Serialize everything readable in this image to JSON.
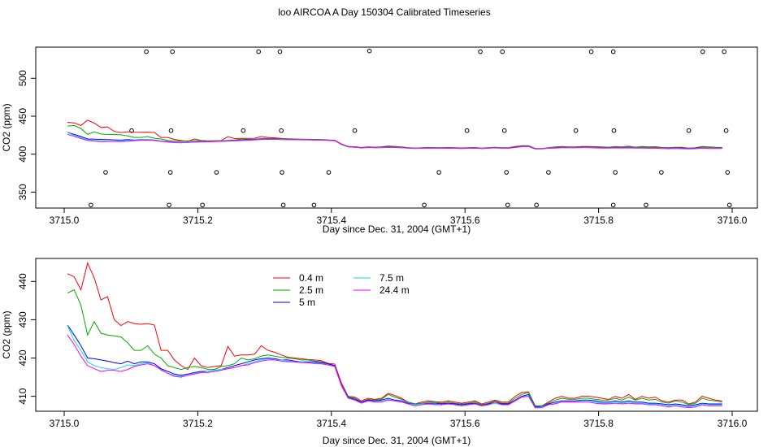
{
  "main_title": "loo AIRCOA A  Day 150304  Calibrated Timeseries",
  "chart_data": [
    {
      "type": "line",
      "xlabel": "Day since Dec. 31, 2004 (GMT+1)",
      "ylabel": "CO2 (ppm)",
      "xlim": [
        3715.0,
        3716.0
      ],
      "ylim": [
        329,
        541
      ],
      "x_ticks": [
        "3715.0",
        "3715.2",
        "3715.4",
        "3715.6",
        "3715.8",
        "3716.0"
      ],
      "y_ticks": [
        "350",
        "400",
        "450",
        "500"
      ],
      "grid": false,
      "legend": "none",
      "colors": [
        "#ff0000",
        "#00aa00",
        "#0000ff",
        "#00e5ee",
        "#ff00ff"
      ],
      "x": [
        3715.005,
        3715.015,
        3715.025,
        3715.035,
        3715.045,
        3715.055,
        3715.065,
        3715.075,
        3715.085,
        3715.095,
        3715.105,
        3715.115,
        3715.125,
        3715.135,
        3715.145,
        3715.155,
        3715.165,
        3715.175,
        3715.185,
        3715.195,
        3715.205,
        3715.215,
        3715.225,
        3715.235,
        3715.245,
        3715.255,
        3715.265,
        3715.275,
        3715.285,
        3715.295,
        3715.305,
        3715.315,
        3715.325,
        3715.335,
        3715.345,
        3715.355,
        3715.365,
        3715.375,
        3715.385,
        3715.395,
        3715.405,
        3715.415,
        3715.425,
        3715.435,
        3715.445,
        3715.455,
        3715.465,
        3715.475,
        3715.485,
        3715.495,
        3715.505,
        3715.515,
        3715.525,
        3715.535,
        3715.545,
        3715.555,
        3715.565,
        3715.575,
        3715.585,
        3715.595,
        3715.605,
        3715.615,
        3715.625,
        3715.635,
        3715.645,
        3715.655,
        3715.665,
        3715.675,
        3715.685,
        3715.695,
        3715.705,
        3715.715,
        3715.725,
        3715.735,
        3715.745,
        3715.755,
        3715.765,
        3715.775,
        3715.785,
        3715.795,
        3715.805,
        3715.815,
        3715.825,
        3715.835,
        3715.845,
        3715.855,
        3715.865,
        3715.875,
        3715.885,
        3715.895,
        3715.905,
        3715.915,
        3715.925,
        3715.935,
        3715.945,
        3715.955,
        3715.965,
        3715.975,
        3715.985
      ],
      "series": [
        {
          "name": "0.4 m",
          "values": [
            442.0,
            441.2,
            437.8,
            444.8,
            440.9,
            435.2,
            436.0,
            430.0,
            428.5,
            429.5,
            429.0,
            428.8,
            429.0,
            428.6,
            422.0,
            422.0,
            419.5,
            418.0,
            417.0,
            420.0,
            418.0,
            417.5,
            417.8,
            418.0,
            423.0,
            420.5,
            420.8,
            420.8,
            421.0,
            423.2,
            422.0,
            421.5,
            420.8,
            420.2,
            420.0,
            419.8,
            419.6,
            419.5,
            419.3,
            418.6,
            418.4,
            413.5,
            410.0,
            409.8,
            408.8,
            409.5,
            409.2,
            409.5,
            410.8,
            410.2,
            409.5,
            408.5,
            408.0,
            408.5,
            408.8,
            408.6,
            408.5,
            408.8,
            408.5,
            408.2,
            408.5,
            408.8,
            408.0,
            408.5,
            409.0,
            408.5,
            408.5,
            410.0,
            411.0,
            411.2,
            407.5,
            407.5,
            408.5,
            409.5,
            410.0,
            409.5,
            409.5,
            410.0,
            410.0,
            409.8,
            409.5,
            409.2,
            410.0,
            409.5,
            410.5,
            409.2,
            410.0,
            409.5,
            409.8,
            408.8,
            408.5,
            409.0,
            409.0,
            408.0,
            408.5,
            410.0,
            409.5,
            409.0,
            408.8
          ]
        },
        {
          "name": "2.5 m",
          "values": [
            437.0,
            437.8,
            433.8,
            426.0,
            429.5,
            426.5,
            426.0,
            425.8,
            425.5,
            424.0,
            422.0,
            422.0,
            423.2,
            421.0,
            420.0,
            418.0,
            417.5,
            417.0,
            417.5,
            417.8,
            417.5,
            417.0,
            417.0,
            417.8,
            418.0,
            418.5,
            420.0,
            419.5,
            419.8,
            420.5,
            420.8,
            420.5,
            420.2,
            420.0,
            419.8,
            419.5,
            419.5,
            419.2,
            419.0,
            418.5,
            418.0,
            413.0,
            410.0,
            409.5,
            408.5,
            409.2,
            409.0,
            409.2,
            410.5,
            409.8,
            409.2,
            408.5,
            408.0,
            408.2,
            408.5,
            408.5,
            408.2,
            408.5,
            408.2,
            408.0,
            408.2,
            408.5,
            407.8,
            408.2,
            408.8,
            408.2,
            408.2,
            409.5,
            410.5,
            411.0,
            407.5,
            407.5,
            408.2,
            409.0,
            409.5,
            409.2,
            409.2,
            409.5,
            409.5,
            409.2,
            409.0,
            409.0,
            409.5,
            409.0,
            409.8,
            409.0,
            409.5,
            409.0,
            409.2,
            408.5,
            408.2,
            408.8,
            408.5,
            407.8,
            408.2,
            409.5,
            409.0,
            408.8,
            408.5
          ]
        },
        {
          "name": "5 m",
          "values": [
            428.6,
            426.0,
            423.2,
            420.0,
            419.8,
            419.5,
            419.2,
            418.8,
            418.5,
            419.2,
            418.5,
            419.0,
            419.0,
            418.5,
            417.2,
            416.5,
            415.8,
            415.5,
            415.8,
            416.2,
            416.5,
            416.5,
            416.8,
            417.0,
            417.5,
            418.0,
            418.5,
            419.0,
            419.5,
            419.8,
            420.0,
            419.8,
            419.5,
            419.5,
            419.2,
            419.0,
            419.0,
            419.0,
            418.8,
            418.5,
            418.0,
            413.0,
            409.8,
            409.2,
            408.5,
            409.0,
            408.8,
            409.0,
            409.5,
            409.0,
            408.8,
            408.2,
            407.8,
            408.0,
            408.2,
            408.2,
            408.0,
            408.2,
            408.0,
            407.8,
            408.0,
            408.2,
            407.6,
            408.0,
            408.5,
            408.0,
            408.0,
            409.0,
            410.0,
            410.5,
            407.2,
            407.3,
            408.0,
            408.5,
            408.8,
            408.8,
            408.8,
            409.0,
            409.0,
            408.8,
            408.5,
            408.5,
            408.8,
            408.5,
            408.8,
            408.5,
            408.5,
            408.2,
            408.2,
            408.0,
            407.8,
            408.0,
            407.8,
            407.5,
            407.8,
            408.2,
            408.0,
            408.0,
            408.0
          ]
        },
        {
          "name": "7.5 m",
          "values": [
            428.5,
            424.5,
            422.0,
            419.0,
            418.0,
            417.5,
            417.2,
            417.0,
            417.5,
            418.2,
            418.0,
            418.5,
            418.8,
            418.0,
            416.8,
            416.0,
            415.5,
            415.2,
            415.5,
            416.0,
            416.2,
            416.5,
            416.8,
            417.0,
            417.2,
            417.5,
            418.0,
            418.5,
            419.0,
            419.5,
            419.8,
            419.5,
            419.5,
            419.2,
            419.0,
            419.0,
            418.8,
            418.8,
            418.5,
            418.2,
            417.8,
            412.8,
            409.5,
            409.0,
            408.2,
            408.8,
            408.5,
            408.8,
            409.2,
            408.8,
            408.5,
            408.0,
            407.8,
            408.0,
            408.0,
            408.0,
            407.8,
            408.0,
            407.8,
            407.5,
            407.8,
            408.0,
            407.5,
            407.8,
            408.2,
            407.8,
            407.8,
            408.8,
            409.8,
            410.2,
            407.0,
            407.2,
            407.8,
            408.2,
            408.5,
            408.5,
            408.5,
            408.8,
            408.8,
            408.5,
            408.2,
            408.2,
            408.5,
            408.2,
            408.5,
            408.2,
            408.2,
            408.0,
            408.0,
            407.8,
            407.5,
            407.8,
            407.5,
            407.2,
            407.5,
            408.0,
            407.8,
            407.8,
            407.8
          ]
        },
        {
          "name": "24.4 m",
          "values": [
            426.0,
            423.5,
            420.5,
            418.0,
            417.2,
            416.5,
            416.8,
            416.8,
            416.5,
            417.0,
            417.8,
            418.2,
            418.5,
            418.0,
            417.0,
            416.0,
            415.2,
            415.0,
            415.5,
            415.8,
            416.2,
            416.2,
            416.5,
            416.8,
            417.2,
            417.5,
            418.0,
            418.2,
            418.8,
            419.2,
            419.5,
            419.5,
            419.2,
            419.0,
            419.0,
            418.8,
            418.8,
            418.5,
            418.5,
            418.2,
            417.8,
            412.8,
            409.5,
            409.0,
            408.2,
            408.8,
            408.5,
            408.5,
            409.0,
            408.8,
            408.5,
            408.0,
            407.5,
            407.8,
            408.0,
            407.8,
            407.8,
            408.0,
            407.8,
            407.5,
            407.8,
            408.0,
            407.5,
            407.8,
            408.5,
            407.8,
            407.8,
            408.8,
            409.8,
            410.0,
            407.0,
            407.0,
            407.8,
            408.0,
            408.5,
            408.5,
            408.5,
            408.5,
            408.5,
            408.2,
            408.0,
            408.0,
            408.2,
            408.0,
            408.2,
            408.0,
            408.0,
            407.8,
            407.8,
            407.5,
            407.2,
            407.5,
            407.2,
            407.0,
            407.2,
            407.8,
            407.5,
            407.5,
            407.5
          ]
        }
      ],
      "markers": {
        "x": [
          3715.123,
          3715.162,
          3715.291,
          3715.323,
          3715.457,
          3715.623,
          3715.656,
          3715.789,
          3715.822,
          3715.956,
          3715.988,
          3715.101,
          3715.16,
          3715.268,
          3715.325,
          3715.435,
          3715.603,
          3715.659,
          3715.766,
          3715.823,
          3715.935,
          3715.991,
          3715.062,
          3715.159,
          3715.228,
          3715.326,
          3715.396,
          3715.561,
          3715.662,
          3715.725,
          3715.825,
          3715.894,
          3715.993,
          3715.04,
          3715.157,
          3715.207,
          3715.328,
          3715.374,
          3715.539,
          3715.664,
          3715.707,
          3715.822,
          3715.871,
          3715.996
        ],
        "y": [
          535,
          535,
          535,
          535,
          536,
          535,
          535,
          535,
          535,
          535,
          535,
          431,
          431,
          431,
          431,
          431,
          431,
          431,
          431,
          431,
          431,
          431,
          376,
          376,
          376,
          376,
          376,
          376,
          376,
          376,
          376,
          376,
          376,
          333,
          333,
          333,
          333,
          333,
          333,
          333,
          333,
          333,
          333,
          333
        ]
      }
    },
    {
      "type": "line",
      "xlabel": "Day since Dec. 31, 2004 (GMT+1)",
      "ylabel": "CO2 (ppm)",
      "xlim": [
        3715.0,
        3716.0
      ],
      "ylim": [
        406.1,
        446.0
      ],
      "x_ticks": [
        "3715.0",
        "3715.2",
        "3715.4",
        "3715.6",
        "3715.8",
        "3716.0"
      ],
      "y_ticks": [
        "410",
        "420",
        "430",
        "440"
      ],
      "grid": false,
      "legend": "top-left",
      "legend_entries": [
        "0.4 m",
        "2.5 m",
        "5 m",
        "7.5 m",
        "24.4 m"
      ],
      "colors": [
        "#ff0000",
        "#00aa00",
        "#0000ff",
        "#00e5ee",
        "#ff00ff"
      ],
      "same_series_as_top": true
    }
  ]
}
